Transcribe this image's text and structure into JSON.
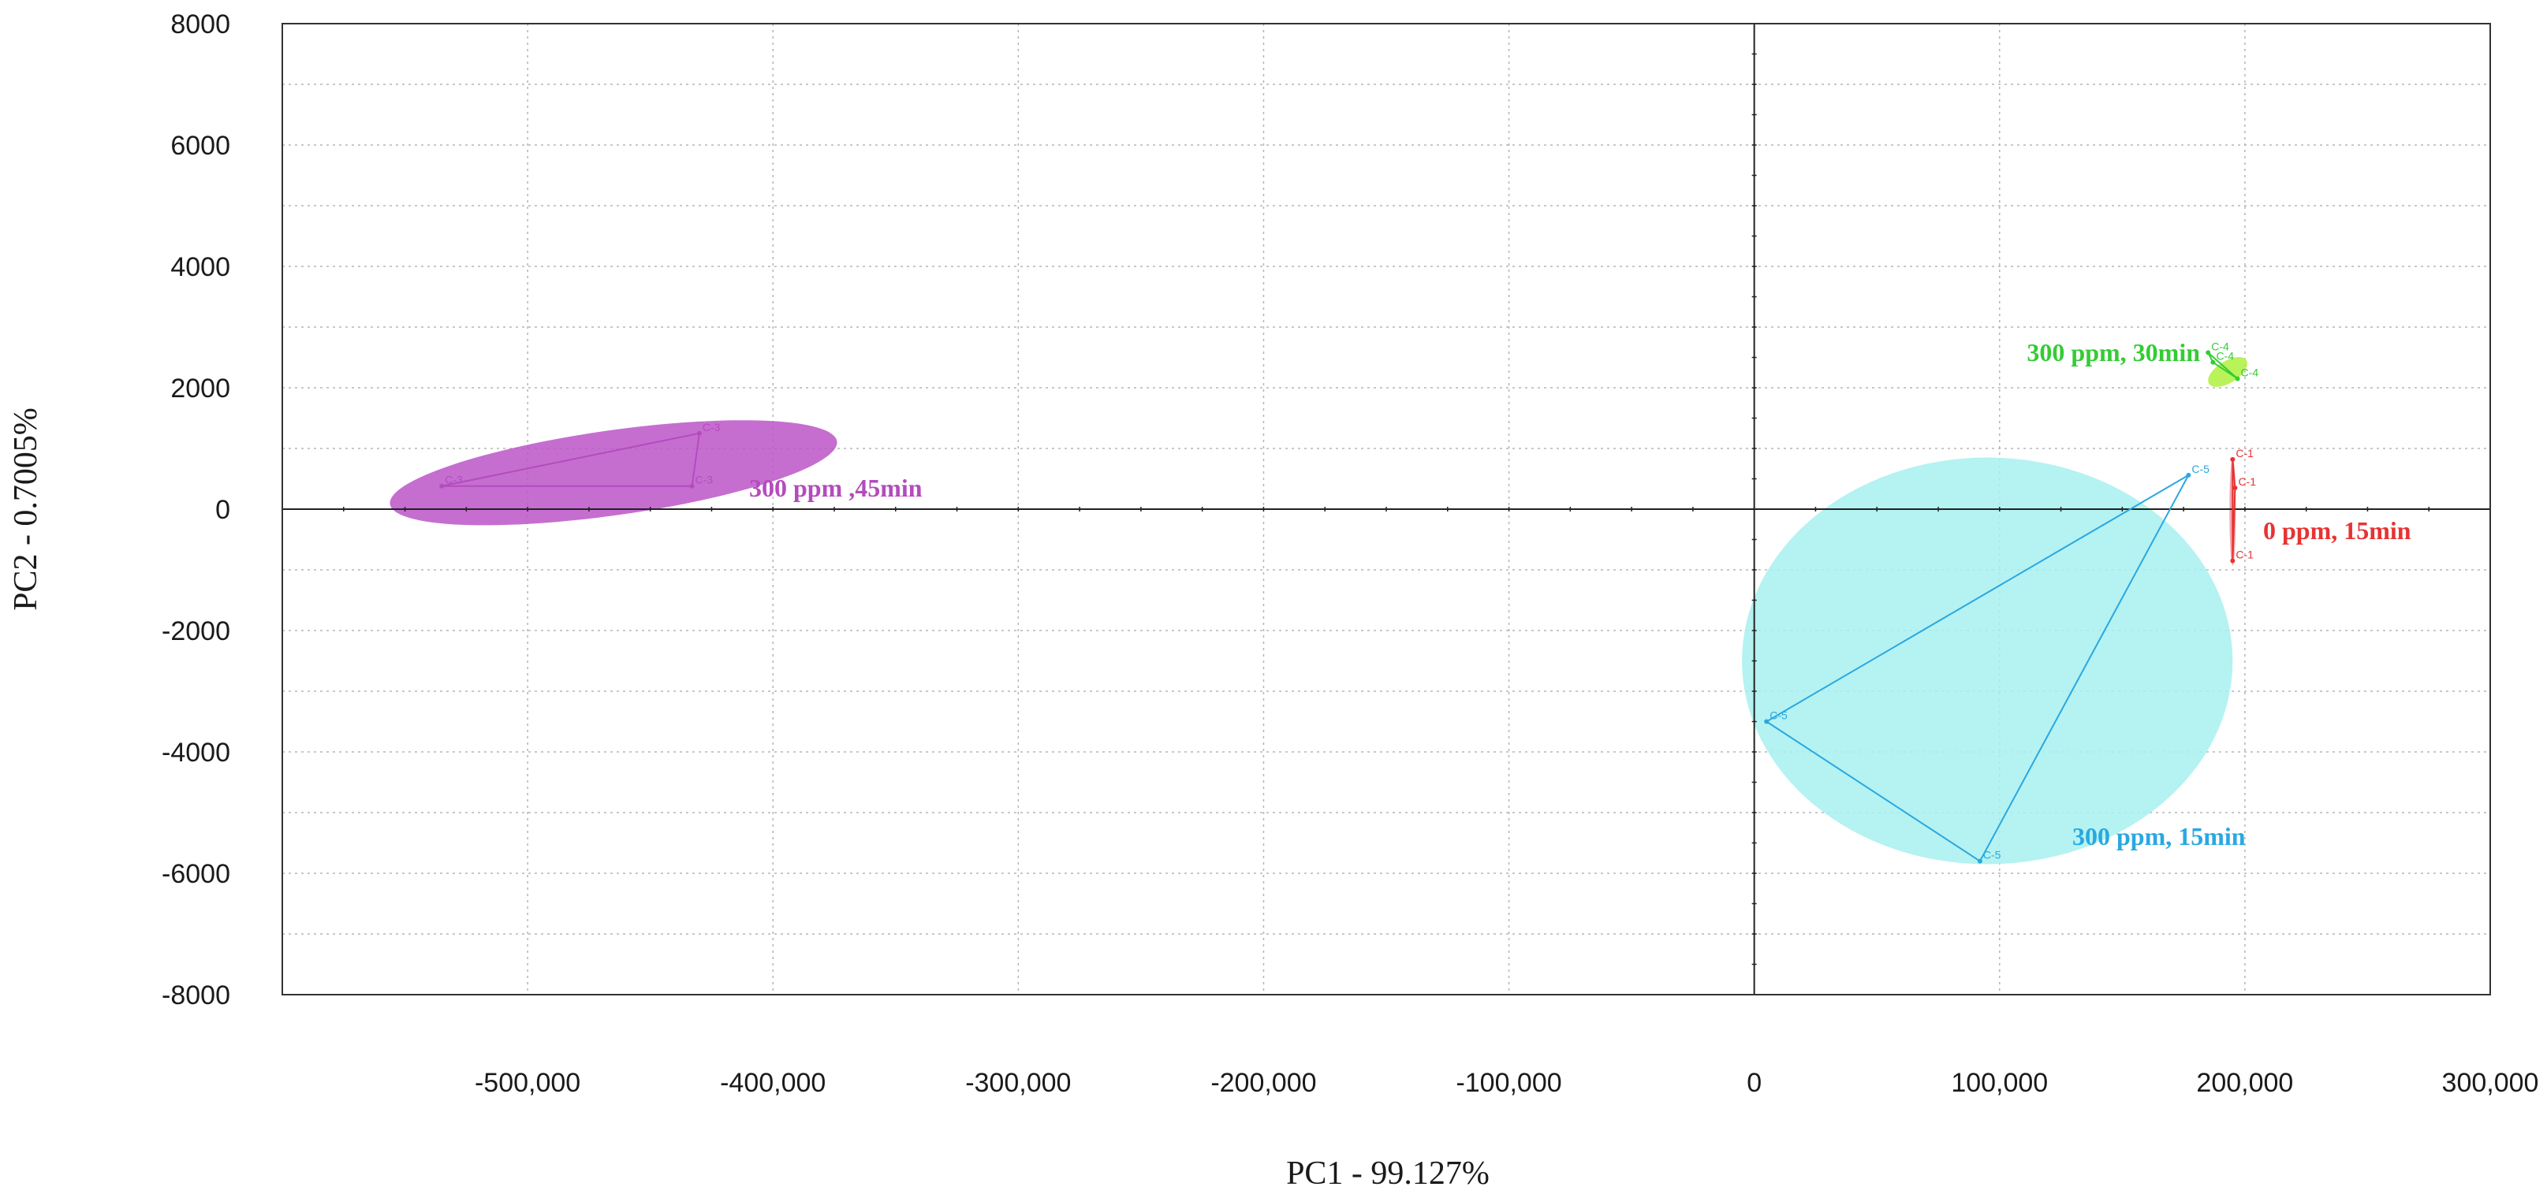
{
  "chart_data": {
    "type": "scatter",
    "title": "",
    "xlabel": "PC1 - 99.127%",
    "ylabel": "PC2 - 0.7005%",
    "xlim": [
      -600000,
      300000
    ],
    "ylim": [
      -8000,
      8000
    ],
    "x_ticks": [
      -500000,
      -400000,
      -300000,
      -200000,
      -100000,
      0,
      100000,
      200000,
      300000
    ],
    "x_tick_labels": [
      "-500,000",
      "-400,000",
      "-300,000",
      "-200,000",
      "-100,000",
      "0",
      "100,000",
      "200,000",
      "300,000"
    ],
    "y_ticks": [
      8000,
      6000,
      4000,
      2000,
      0,
      -2000,
      -4000,
      -6000,
      -8000
    ],
    "y_tick_labels": [
      "8000",
      "6000",
      "4000",
      "2000",
      "0",
      "-2000",
      "-4000",
      "-6000",
      "-8000"
    ],
    "grid": true,
    "groups": [
      {
        "name": "300 ppm ,45min",
        "color": "#b44bbd",
        "ellipse_fill": "#bb55c8",
        "ellipse": {
          "cx": -465000,
          "cy": 600,
          "rx": 92000,
          "ry": 700,
          "angle": -8
        },
        "points": [
          {
            "label": "C-3",
            "x": -535000,
            "y": 380
          },
          {
            "label": "C-3",
            "x": -430000,
            "y": 1250
          },
          {
            "label": "C-3",
            "x": -433000,
            "y": 380
          }
        ]
      },
      {
        "name": "300 ppm, 30min",
        "color": "#33cc33",
        "ellipse_fill": "#aef03c",
        "ellipse": {
          "cx": 193000,
          "cy": 2260,
          "rx": 9000,
          "ry": 180,
          "angle": -32
        },
        "points": [
          {
            "label": "C-4",
            "x": 185000,
            "y": 2580
          },
          {
            "label": "C-4",
            "x": 187000,
            "y": 2420
          },
          {
            "label": "C-4",
            "x": 197000,
            "y": 2150
          }
        ]
      },
      {
        "name": "0 ppm, 15min",
        "color": "#e63333",
        "ellipse_fill": "#f29aa0",
        "ellipse": {
          "cx": 195000,
          "cy": -40,
          "rx": 1300,
          "ry": 890,
          "angle": 0
        },
        "points": [
          {
            "label": "C-1",
            "x": 195000,
            "y": 820
          },
          {
            "label": "C-1",
            "x": 196000,
            "y": 350
          },
          {
            "label": "C-1",
            "x": 195000,
            "y": -850
          }
        ]
      },
      {
        "name": "300 ppm, 15min",
        "color": "#29a8e0",
        "ellipse_fill": "#a8f0f0",
        "ellipse": {
          "cx": 95000,
          "cy": -2500,
          "rx": 100000,
          "ry": 3350,
          "angle": 0
        },
        "points": [
          {
            "label": "C-5",
            "x": 177000,
            "y": 560
          },
          {
            "label": "C-5",
            "x": 5000,
            "y": -3500
          },
          {
            "label": "C-5",
            "x": 92000,
            "y": -5800
          }
        ]
      }
    ]
  }
}
